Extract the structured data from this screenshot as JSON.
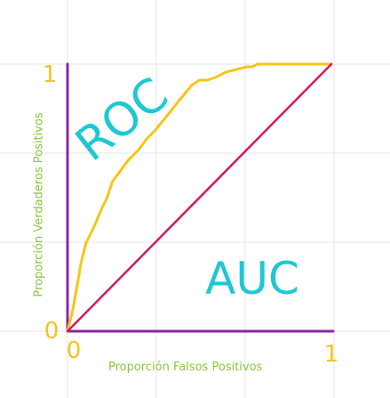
{
  "chart_data": {
    "type": "line",
    "title": "",
    "xlabel": "Proporción Falsos Positivos",
    "ylabel": "Proporción Verdaderos Positivos",
    "xlim": [
      0,
      1
    ],
    "ylim": [
      0,
      1
    ],
    "grid": true,
    "x_ticks": [
      "0",
      "1"
    ],
    "y_ticks": [
      "0",
      "1"
    ],
    "annotations": [
      "ROC",
      "AUC"
    ],
    "colors": {
      "roc": "#f5c518",
      "diagonal": "#d6195a",
      "axes": "#8e24aa",
      "ticks": "#f5c518",
      "annotation": "#1fc7d4",
      "axis_label": "#8cc63f",
      "grid": "#e6e6e6"
    },
    "series": [
      {
        "x": [
          0,
          0.01,
          0.02,
          0.04,
          0.05,
          0.07,
          0.1,
          0.13,
          0.15,
          0.17,
          0.2,
          0.23,
          0.27,
          0.3,
          0.33,
          0.38,
          0.42,
          0.47,
          0.5,
          0.53,
          0.56,
          0.6,
          0.64,
          0.68,
          0.7,
          0.72,
          0.75,
          0.8,
          0.85,
          0.9,
          1.0
        ],
        "y": [
          0,
          0.04,
          0.08,
          0.19,
          0.25,
          0.33,
          0.39,
          0.46,
          0.5,
          0.56,
          0.6,
          0.64,
          0.68,
          0.72,
          0.75,
          0.81,
          0.86,
          0.92,
          0.94,
          0.94,
          0.95,
          0.97,
          0.98,
          0.99,
          0.99,
          1.0,
          1.0,
          1.0,
          1.0,
          1.0,
          1.0
        ]
      },
      {
        "x": [
          0,
          1
        ],
        "y": [
          0,
          1
        ]
      }
    ]
  }
}
